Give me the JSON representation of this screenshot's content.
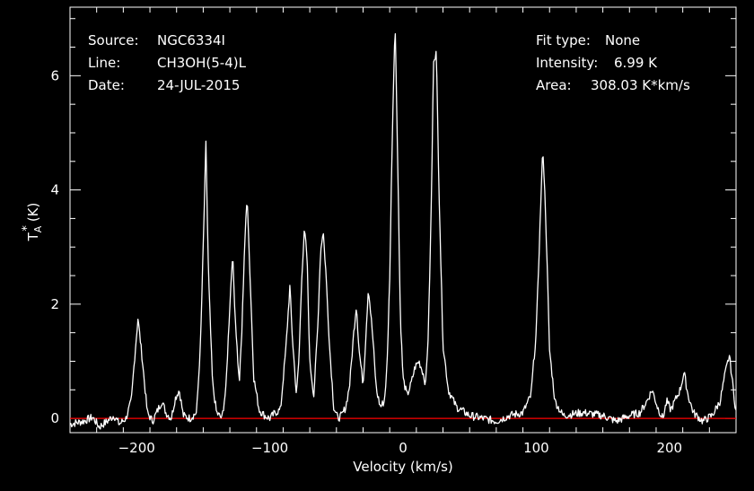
{
  "header": {
    "source_label": "Source:",
    "source_value": "NGC6334I",
    "line_label": "Line:",
    "line_value": "CH3OH(5-4)L",
    "date_label": "Date:",
    "date_value": "24-JUL-2015",
    "fit_label": "Fit type:",
    "fit_value": "None",
    "intensity_label": "Intensity:",
    "intensity_value": "6.99 K",
    "area_label": "Area:",
    "area_value": "308.03 K*km/s"
  },
  "chart_data": {
    "type": "line",
    "xlabel": "Velocity (km/s)",
    "ylabel": "T",
    "ylabel_sub": "A",
    "ylabel_sup": "*",
    "ylabel_unit": "(K)",
    "xlim": [
      -250,
      250
    ],
    "ylim": [
      -0.25,
      7.2
    ],
    "xticks": [
      -200,
      -100,
      0,
      100,
      200
    ],
    "yticks": [
      0,
      2,
      4,
      6
    ],
    "grid": false,
    "baseline": 0,
    "colors": {
      "spectrum": "#ffffff",
      "baseline": "#ff0000",
      "background": "#000000",
      "axes": "#ffffff"
    },
    "series": [
      {
        "x": [
          -250,
          -240,
          -233,
          -228,
          -222,
          -217,
          -213,
          -208,
          -204,
          -201,
          -199,
          -196,
          -192,
          -188,
          -184,
          -181,
          -178,
          -174,
          -171,
          -168,
          -165,
          -160,
          -155,
          -152,
          -150,
          -148,
          -146,
          -143,
          -140,
          -136,
          -133,
          -130,
          -128,
          -126,
          -123,
          -121,
          -119,
          -117,
          -115,
          -112,
          -108,
          -104,
          -100,
          -96,
          -92,
          -88,
          -85,
          -83,
          -80,
          -78,
          -76,
          -74,
          -72,
          -70,
          -67,
          -64,
          -62,
          -60,
          -58,
          -55,
          -52,
          -49,
          -46,
          -43,
          -40,
          -37,
          -35,
          -33,
          -30,
          -28,
          -26,
          -23,
          -20,
          -17,
          -14,
          -12,
          -10,
          -8,
          -6,
          -4,
          -2,
          0,
          3,
          6,
          9,
          12,
          15,
          17,
          19,
          21,
          23,
          25,
          27,
          30,
          34,
          40,
          50,
          60,
          70,
          80,
          90,
          96,
          100,
          103,
          105,
          107,
          110,
          114,
          120,
          135,
          150,
          160,
          170,
          178,
          183,
          187,
          191,
          195,
          198,
          201,
          204,
          208,
          211,
          214,
          218,
          225,
          232,
          238,
          242,
          245,
          247,
          250
        ],
        "y": [
          -0.1,
          -0.05,
          0.02,
          -0.15,
          -0.05,
          0.05,
          -0.1,
          0.0,
          0.3,
          1.2,
          1.75,
          1.1,
          0.1,
          -0.05,
          0.15,
          0.3,
          0.1,
          0.0,
          0.35,
          0.5,
          0.05,
          0.0,
          0.1,
          1.3,
          3.0,
          4.8,
          2.5,
          0.6,
          0.1,
          0.0,
          0.5,
          2.0,
          2.9,
          1.8,
          0.6,
          1.5,
          3.0,
          3.9,
          2.6,
          0.7,
          0.15,
          0.05,
          0.0,
          0.1,
          0.15,
          1.2,
          2.3,
          1.4,
          0.4,
          1.1,
          2.5,
          3.3,
          2.8,
          1.0,
          0.4,
          1.6,
          2.9,
          3.3,
          2.6,
          1.2,
          0.2,
          0.0,
          0.05,
          0.2,
          0.6,
          1.5,
          2.0,
          1.2,
          0.6,
          1.4,
          2.3,
          1.5,
          0.5,
          0.2,
          0.3,
          0.9,
          2.5,
          5.0,
          6.99,
          4.5,
          1.8,
          0.7,
          0.4,
          0.6,
          0.9,
          1.0,
          0.8,
          0.6,
          1.5,
          3.5,
          6.3,
          6.4,
          4.0,
          1.3,
          0.5,
          0.2,
          0.05,
          0.0,
          -0.05,
          0.05,
          0.1,
          0.4,
          1.5,
          3.5,
          4.75,
          3.6,
          1.2,
          0.3,
          0.05,
          0.1,
          0.05,
          -0.05,
          0.05,
          0.1,
          0.3,
          0.5,
          0.2,
          0.0,
          0.3,
          0.15,
          0.3,
          0.5,
          0.8,
          0.4,
          0.1,
          -0.05,
          0.05,
          0.3,
          0.8,
          1.1,
          0.7,
          0.1
        ]
      }
    ]
  }
}
